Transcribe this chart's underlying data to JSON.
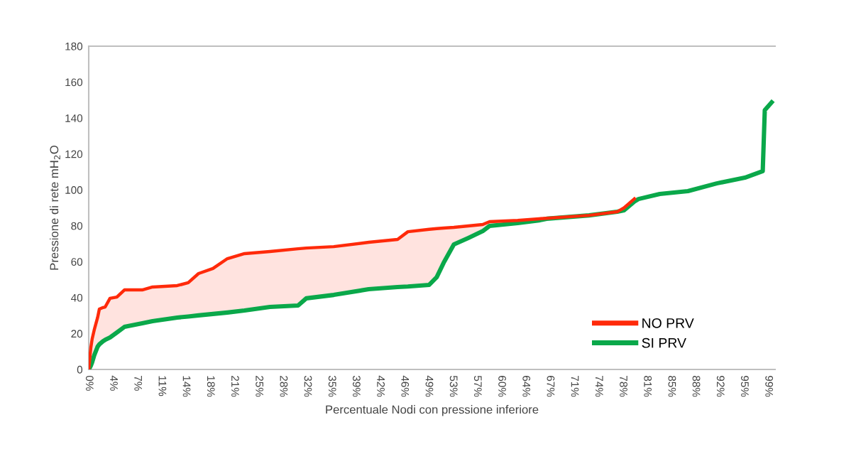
{
  "chart_data": {
    "type": "line",
    "xlabel": "Percentuale Nodi con pressione inferiore",
    "ylabel": "Pressione di rete mH$_{2}$O",
    "x": [
      0,
      0.3,
      0.5,
      0.8,
      1.3,
      1.55,
      2.1,
      2.4,
      3.1,
      4.1,
      5.2,
      7.8,
      9.3,
      12.9,
      14.5,
      16,
      18.1,
      20.2,
      22.7,
      26.4,
      30.5,
      31.7,
      35.7,
      40.8,
      45,
      46.5,
      49.6,
      50.7,
      51.7,
      53.2,
      55.3,
      57.4,
      58.4,
      62.5,
      65.6,
      66.7,
      72.9,
      77,
      78,
      79.5,
      80.1,
      83.2,
      87.3,
      91.5,
      95.6,
      98.2,
      98.5,
      99.5
    ],
    "series": [
      {
        "name": "NO PRV",
        "color": "#ff2a0a",
        "values": [
          0,
          11.9,
          17,
          22,
          29,
          33.6,
          34.5,
          34.8,
          39.6,
          40.3,
          44.3,
          44.3,
          45.9,
          46.7,
          48.3,
          53.4,
          56.2,
          61.7,
          64.5,
          65.7,
          67.2,
          67.6,
          68.4,
          70.8,
          72.4,
          76.7,
          78,
          78.4,
          78.7,
          79.1,
          79.9,
          80.7,
          82.3,
          83,
          83.9,
          84.2,
          85.8,
          87.8,
          90,
          95,
          null,
          null,
          null,
          null,
          null,
          null,
          null,
          null
        ],
        "line_style": "solid"
      },
      {
        "name": "SI PRV",
        "color": "#0aa84a",
        "values": [
          0,
          2,
          4,
          7.9,
          12.7,
          14,
          15.8,
          16.5,
          17.8,
          20.6,
          23.7,
          25.7,
          26.9,
          28.9,
          29.5,
          30.1,
          30.9,
          31.7,
          32.8,
          34.8,
          35.6,
          39.6,
          41.5,
          44.7,
          45.9,
          46.2,
          47.1,
          51.4,
          59.3,
          69.6,
          73.2,
          77,
          79.9,
          81.5,
          83,
          83.9,
          85.8,
          87.8,
          88.6,
          93.5,
          94.9,
          97.7,
          99.3,
          103.6,
          106.8,
          110.4,
          144.4,
          148.7
        ]
      }
    ],
    "xlim": [
      0,
      100
    ],
    "xticks": [
      {
        "value": 0,
        "label": "0%"
      },
      {
        "value": 3.54,
        "label": "4%"
      },
      {
        "value": 7.07,
        "label": "7%"
      },
      {
        "value": 10.61,
        "label": "11%"
      },
      {
        "value": 14.14,
        "label": "14%"
      },
      {
        "value": 17.68,
        "label": "18%"
      },
      {
        "value": 21.21,
        "label": "21%"
      },
      {
        "value": 24.75,
        "label": "25%"
      },
      {
        "value": 28.29,
        "label": "28%"
      },
      {
        "value": 31.82,
        "label": "32%"
      },
      {
        "value": 35.36,
        "label": "35%"
      },
      {
        "value": 38.89,
        "label": "39%"
      },
      {
        "value": 42.43,
        "label": "42%"
      },
      {
        "value": 45.96,
        "label": "46%"
      },
      {
        "value": 49.5,
        "label": "49%"
      },
      {
        "value": 53.04,
        "label": "53%"
      },
      {
        "value": 56.57,
        "label": "57%"
      },
      {
        "value": 60.11,
        "label": "60%"
      },
      {
        "value": 63.64,
        "label": "64%"
      },
      {
        "value": 67.18,
        "label": "67%"
      },
      {
        "value": 70.71,
        "label": "71%"
      },
      {
        "value": 74.25,
        "label": "74%"
      },
      {
        "value": 77.79,
        "label": "78%"
      },
      {
        "value": 81.32,
        "label": "81%"
      },
      {
        "value": 84.86,
        "label": "85%"
      },
      {
        "value": 88.39,
        "label": "88%"
      },
      {
        "value": 91.93,
        "label": "92%"
      },
      {
        "value": 95.46,
        "label": "95%"
      },
      {
        "value": 99,
        "label": "99%"
      }
    ],
    "ylim": [
      0,
      180
    ],
    "yticks": [
      0,
      20,
      40,
      60,
      80,
      100,
      120,
      140,
      160,
      180
    ],
    "grid": false,
    "legend": "bottom right",
    "marker": "none",
    "line_style": "solid"
  }
}
